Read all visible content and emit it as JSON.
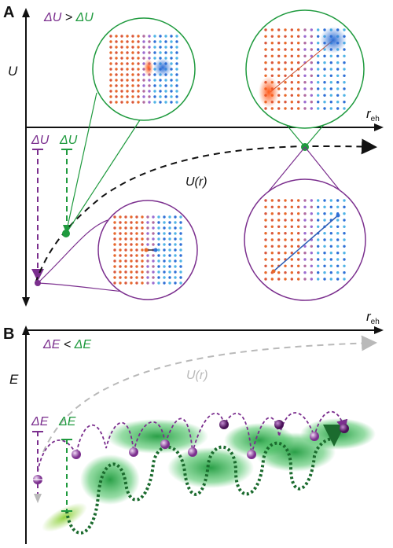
{
  "panel_a": {
    "letter": "A",
    "y_axis": "U",
    "x_axis": "r",
    "x_axis_sub": "eh",
    "curve_label": "U(r)",
    "compare": {
      "left": "ΔU",
      "op": ">",
      "right": "ΔU"
    },
    "bar_purple": "ΔU",
    "bar_green": "ΔU"
  },
  "panel_b": {
    "letter": "B",
    "y_axis": "E",
    "x_axis": "r",
    "x_axis_sub": "eh",
    "curve_label": "U(r)",
    "compare": {
      "left": "ΔE",
      "op": "<",
      "right": "ΔE"
    },
    "bar_purple": "ΔE",
    "bar_green": "ΔE"
  },
  "colors": {
    "purple": "#7b2f8e",
    "green": "#1f9a3e",
    "orange": "#e8682a",
    "blue": "#2e6fd6",
    "grey": "#b9b9b9"
  }
}
